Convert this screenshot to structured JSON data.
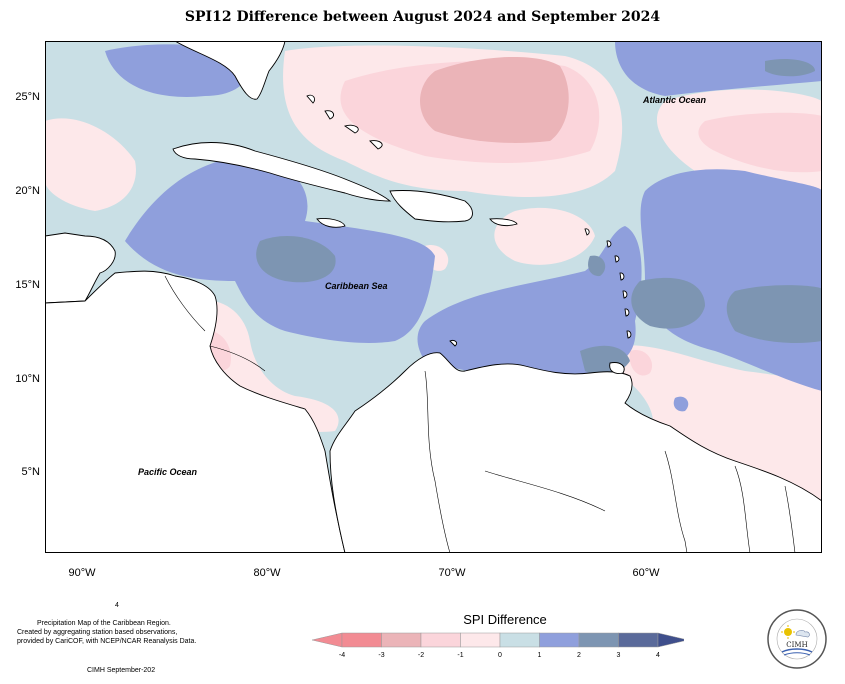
{
  "title": "SPI12 Difference between August 2024 and September 2024",
  "map": {
    "labels": {
      "atlantic": "Atlantic Ocean",
      "caribbean": "Caribbean Sea",
      "pacific": "Pacific Ocean"
    },
    "lat_ticks": [
      "25°N",
      "20°N",
      "15°N",
      "10°N",
      "5°N"
    ],
    "lon_ticks": [
      "90°W",
      "80°W",
      "70°W",
      "60°W"
    ],
    "extent": {
      "lon": [
        -92,
        -50
      ],
      "lat": [
        1.5,
        28.5
      ]
    }
  },
  "footer": {
    "line0": "4",
    "line1": "Precipitation Map of the Caribbean Region.",
    "line2": "Created by aggregating station based observations,",
    "line3": "provided by CariCOF, with NCEP/NCAR Reanalysis Data.",
    "credit": "CIMH September-202"
  },
  "legend": {
    "title": "SPI Difference",
    "ticks": [
      "-4",
      "-3",
      "-2",
      "-1",
      "0",
      "1",
      "2",
      "3",
      "4"
    ],
    "colors": [
      "#f28b93",
      "#ebb4b8",
      "#fbd5db",
      "#fde8ea",
      "#c9dfe5",
      "#8f9fdc",
      "#7d95b2",
      "#5a6a9a",
      "#3f4f8c"
    ]
  },
  "logo": {
    "text": "CIMH"
  }
}
